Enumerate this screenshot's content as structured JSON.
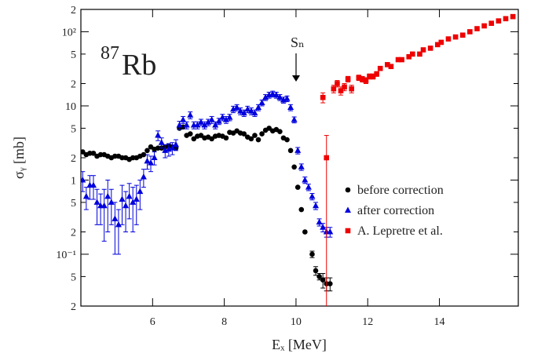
{
  "chart_data": {
    "type": "scatter",
    "nucleus_mass": "87",
    "nucleus": "Rb",
    "annotation": "Sₙ",
    "xlabel": "Eₓ [MeV]",
    "ylabel": "σᵧ [mb]",
    "xlim": [
      4,
      16.2
    ],
    "ylim": [
      0.02,
      200
    ],
    "ylog": true,
    "xticks": [
      6,
      8,
      10,
      12,
      14
    ],
    "yticks": [
      {
        "value": 0.02,
        "label": "2"
      },
      {
        "value": 0.05,
        "label": "5"
      },
      {
        "value": 0.1,
        "label": "10⁻¹"
      },
      {
        "value": 0.2,
        "label": "2"
      },
      {
        "value": 0.5,
        "label": "5"
      },
      1,
      {
        "value": 2,
        "label": "2"
      },
      {
        "value": 5,
        "label": "5"
      },
      10,
      {
        "value": 20,
        "label": "2"
      },
      {
        "value": 50,
        "label": "5"
      },
      {
        "value": 100,
        "label": "10²"
      },
      {
        "value": 200,
        "label": "2"
      }
    ],
    "legend": "lower right",
    "series": [
      {
        "name": "before correction",
        "color": "#000000",
        "marker": "circle",
        "x": [
          4.05,
          4.15,
          4.25,
          4.35,
          4.45,
          4.55,
          4.65,
          4.75,
          4.85,
          4.95,
          5.05,
          5.15,
          5.25,
          5.35,
          5.45,
          5.55,
          5.65,
          5.75,
          5.85,
          5.95,
          6.05,
          6.15,
          6.25,
          6.35,
          6.45,
          6.55,
          6.65,
          6.75,
          6.85,
          6.95,
          7.05,
          7.15,
          7.25,
          7.35,
          7.45,
          7.55,
          7.65,
          7.75,
          7.85,
          7.95,
          8.05,
          8.15,
          8.25,
          8.35,
          8.45,
          8.55,
          8.65,
          8.75,
          8.85,
          8.95,
          9.05,
          9.15,
          9.25,
          9.35,
          9.45,
          9.55,
          9.65,
          9.75,
          9.85,
          9.95,
          10.05,
          10.15,
          10.25,
          10.45,
          10.55,
          10.65,
          10.75,
          10.85,
          10.95
        ],
        "values": [
          2.4,
          2.2,
          2.3,
          2.3,
          2.1,
          2.2,
          2.2,
          2.1,
          2.0,
          2.1,
          2.1,
          2.0,
          2.0,
          1.9,
          2.0,
          2.0,
          2.1,
          2.2,
          2.5,
          2.8,
          2.6,
          2.7,
          2.7,
          2.8,
          2.9,
          2.8,
          2.7,
          5.0,
          5.2,
          4.0,
          4.2,
          3.6,
          3.9,
          4.0,
          3.7,
          3.8,
          3.6,
          3.9,
          4.0,
          3.9,
          3.7,
          4.4,
          4.3,
          4.6,
          4.3,
          4.2,
          3.8,
          3.6,
          4.0,
          3.5,
          4.2,
          4.7,
          5.0,
          4.6,
          4.8,
          4.5,
          3.7,
          3.5,
          2.5,
          1.5,
          0.8,
          0.4,
          0.2,
          0.1,
          0.06,
          0.05,
          0.045,
          0.04,
          0.04
        ],
        "errors": [
          0,
          0,
          0,
          0,
          0,
          0,
          0,
          0,
          0,
          0,
          0,
          0,
          0,
          0,
          0,
          0,
          0,
          0,
          0,
          0,
          0,
          0,
          0,
          0,
          0,
          0,
          0,
          0,
          0,
          0,
          0,
          0,
          0,
          0,
          0,
          0,
          0,
          0,
          0,
          0,
          0,
          0,
          0,
          0,
          0,
          0,
          0,
          0,
          0,
          0,
          0,
          0,
          0,
          0,
          0,
          0,
          0,
          0,
          0,
          0,
          0,
          0,
          0,
          0.01,
          0.008,
          0.005,
          0.01,
          0.008,
          0.008
        ]
      },
      {
        "name": "after correction",
        "color": "#0000dd",
        "marker": "triangle",
        "x": [
          4.05,
          4.15,
          4.25,
          4.35,
          4.45,
          4.55,
          4.65,
          4.75,
          4.85,
          4.95,
          5.05,
          5.15,
          5.25,
          5.35,
          5.45,
          5.55,
          5.65,
          5.75,
          5.85,
          5.95,
          6.05,
          6.15,
          6.25,
          6.35,
          6.45,
          6.55,
          6.65,
          6.75,
          6.85,
          6.95,
          7.05,
          7.15,
          7.25,
          7.35,
          7.45,
          7.55,
          7.65,
          7.75,
          7.85,
          7.95,
          8.05,
          8.15,
          8.25,
          8.35,
          8.45,
          8.55,
          8.65,
          8.75,
          8.85,
          8.95,
          9.05,
          9.15,
          9.25,
          9.35,
          9.45,
          9.55,
          9.65,
          9.75,
          9.85,
          9.95,
          10.05,
          10.15,
          10.25,
          10.35,
          10.45,
          10.55,
          10.65,
          10.75,
          10.85,
          10.95
        ],
        "values": [
          1.0,
          0.6,
          0.85,
          0.85,
          0.5,
          0.45,
          0.45,
          0.6,
          0.5,
          0.3,
          0.25,
          0.55,
          0.45,
          0.6,
          0.5,
          0.55,
          0.7,
          1.1,
          1.8,
          1.7,
          2.0,
          4.0,
          3.2,
          2.5,
          2.6,
          2.7,
          3.0,
          5.5,
          6.5,
          5.5,
          7.5,
          5.5,
          5.5,
          6.0,
          5.5,
          6.0,
          6.5,
          5.5,
          6.2,
          7.0,
          6.5,
          7.0,
          9.0,
          9.5,
          8.5,
          8.0,
          9.0,
          8.5,
          8.0,
          9.5,
          11,
          13,
          14,
          14.5,
          14,
          13,
          12,
          12.5,
          9.5,
          6.5,
          2.5,
          1.5,
          1.0,
          0.8,
          0.6,
          0.45,
          0.27,
          0.23,
          0.2,
          0.2
        ],
        "errors": [
          0.3,
          0.2,
          0.3,
          0.3,
          0.25,
          0.2,
          0.3,
          0.4,
          0.25,
          0.2,
          0.15,
          0.3,
          0.25,
          0.3,
          0.3,
          0.3,
          0.3,
          0.3,
          0.4,
          0.4,
          0.4,
          0.6,
          0.5,
          0.5,
          0.5,
          0.5,
          0.5,
          0.7,
          0.7,
          0.6,
          0.8,
          0.6,
          0.6,
          0.6,
          0.6,
          0.6,
          0.7,
          0.6,
          0.6,
          0.7,
          0.7,
          0.7,
          0.9,
          0.9,
          0.9,
          0.8,
          0.9,
          0.9,
          0.8,
          0.9,
          1.0,
          1.2,
          1.3,
          1.3,
          1.3,
          1.2,
          1.1,
          1.1,
          0.9,
          0.6,
          0.25,
          0.15,
          0.1,
          0.08,
          0.06,
          0.05,
          0.03,
          0.03,
          0.03,
          0.03
        ]
      },
      {
        "name": "A. Lepretre et al.",
        "color": "#ee0000",
        "marker": "square",
        "x": [
          10.75,
          10.85,
          11.05,
          11.15,
          11.25,
          11.35,
          11.45,
          11.55,
          11.75,
          11.85,
          11.95,
          12.05,
          12.15,
          12.25,
          12.35,
          12.55,
          12.65,
          12.85,
          12.95,
          13.15,
          13.25,
          13.45,
          13.55,
          13.75,
          13.95,
          14.05,
          14.25,
          14.45,
          14.65,
          14.85,
          15.05,
          15.25,
          15.45,
          15.65,
          15.85,
          16.05
        ],
        "values": [
          13,
          2,
          17,
          20,
          16,
          18,
          23,
          17,
          24,
          23,
          22,
          25,
          25,
          27,
          32,
          36,
          34,
          42,
          42,
          46,
          50,
          50,
          57,
          60,
          67,
          72,
          80,
          85,
          90,
          100,
          110,
          120,
          130,
          140,
          150,
          160
        ],
        "errors": [
          2,
          2,
          2,
          2,
          2,
          2,
          2,
          2,
          2,
          2,
          2,
          2,
          2,
          2,
          2,
          2,
          2,
          2,
          2,
          2,
          2,
          2,
          2,
          2,
          2,
          2,
          2,
          2,
          2,
          2,
          2,
          2,
          2,
          2,
          2,
          2
        ]
      }
    ]
  }
}
